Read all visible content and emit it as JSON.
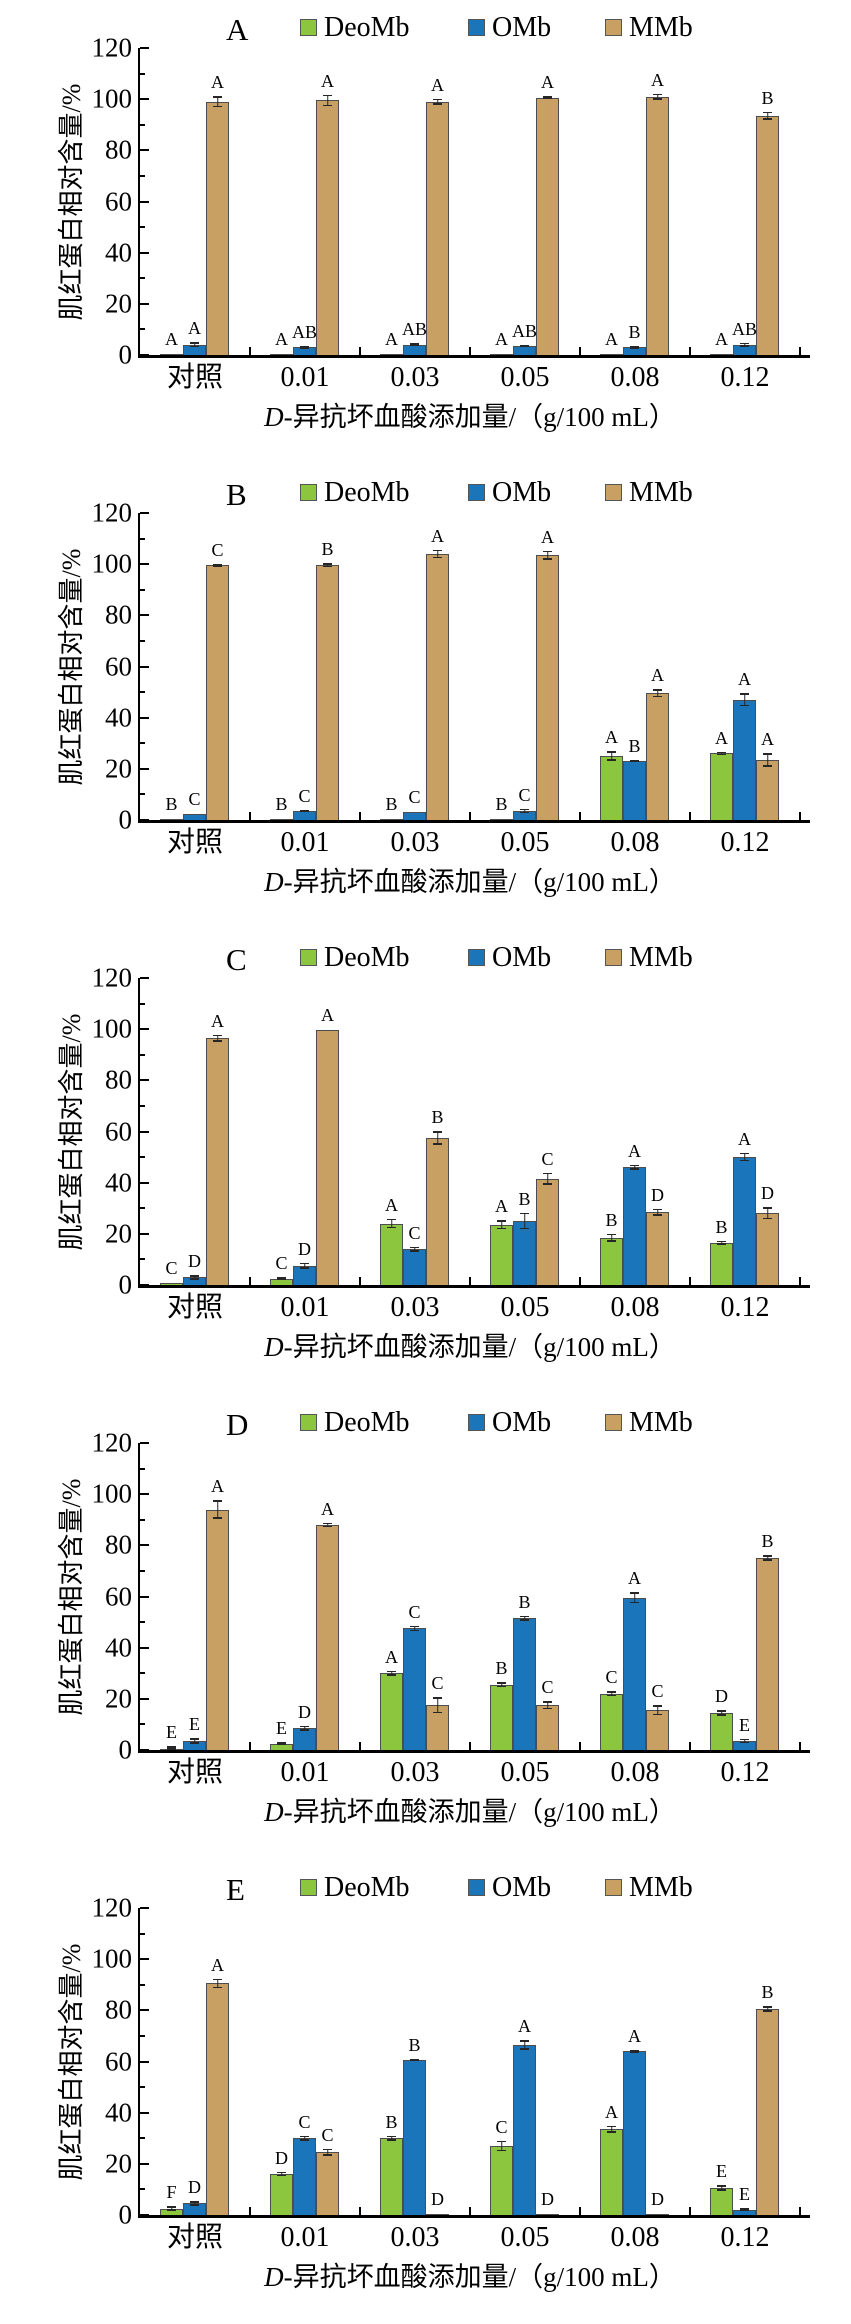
{
  "figure_title": "",
  "colors": {
    "DeoMb": "#8CC63F",
    "OMb": "#1B75BB",
    "MMb": "#C8A064",
    "bar_border": "#4D4D4D",
    "error_bar": "#262626",
    "axis": "#000000"
  },
  "chart_data": [
    {
      "type": "bar",
      "panel_label": "A",
      "ylabel": "肌红蛋白相对含量/%",
      "xlabel": "D-异抗坏血酸添加量/（g/100 mL）",
      "xlabel_italic_prefix": "D",
      "xlabel_rest": "-异抗坏血酸添加量/（g/100 mL）",
      "categories": [
        "对照",
        "0.01",
        "0.03",
        "0.05",
        "0.08",
        "0.12"
      ],
      "ylim": [
        0,
        120
      ],
      "yticks": [
        0,
        20,
        40,
        60,
        80,
        100,
        120
      ],
      "yticks_minor": [
        10,
        30,
        50,
        70,
        90,
        110
      ],
      "legend": [
        "DeoMb",
        "OMb",
        "MMb"
      ],
      "legend_position": "top",
      "grid": false,
      "series": [
        {
          "name": "DeoMb",
          "values": [
            0.4,
            0.4,
            0.4,
            0.4,
            0.4,
            0.4
          ],
          "errors": [
            0.2,
            0.2,
            0.2,
            0.2,
            0.2,
            0.2
          ],
          "letters": [
            "A",
            "A",
            "A",
            "A",
            "A",
            "A"
          ]
        },
        {
          "name": "OMb",
          "values": [
            4,
            3,
            4,
            3.5,
            3,
            4
          ],
          "errors": [
            1,
            0.5,
            0.6,
            0.5,
            0.5,
            0.8
          ],
          "letters": [
            "A",
            "AB",
            "AB",
            "AB",
            "B",
            "AB"
          ]
        },
        {
          "name": "MMb",
          "values": [
            99,
            99.5,
            99,
            100.5,
            101,
            93.5
          ],
          "errors": [
            2.2,
            2.2,
            1.2,
            0.6,
            1.2,
            1.6
          ],
          "letters": [
            "A",
            "A",
            "A",
            "A",
            "A",
            "B"
          ]
        }
      ]
    },
    {
      "type": "bar",
      "panel_label": "B",
      "ylabel": "肌红蛋白相对含量/%",
      "xlabel": "D-异抗坏血酸添加量/（g/100 mL）",
      "xlabel_italic_prefix": "D",
      "xlabel_rest": "-异抗坏血酸添加量/（g/100 mL）",
      "categories": [
        "对照",
        "0.01",
        "0.03",
        "0.05",
        "0.08",
        "0.12"
      ],
      "ylim": [
        0,
        120
      ],
      "yticks": [
        0,
        20,
        40,
        60,
        80,
        100,
        120
      ],
      "yticks_minor": [
        10,
        30,
        50,
        70,
        90,
        110
      ],
      "legend": [
        "DeoMb",
        "OMb",
        "MMb"
      ],
      "legend_position": "top",
      "grid": false,
      "series": [
        {
          "name": "DeoMb",
          "values": [
            0.4,
            0.4,
            0.4,
            0.4,
            25,
            26
          ],
          "errors": [
            0.2,
            0.2,
            0.2,
            0.2,
            1.8,
            0.6
          ],
          "letters": [
            "B",
            "B",
            "B",
            "B",
            "A",
            "A"
          ]
        },
        {
          "name": "OMb",
          "values": [
            2.5,
            3.5,
            3,
            3.5,
            23,
            47
          ],
          "errors": [
            0.4,
            0.5,
            0.4,
            0.8,
            0.5,
            2.6
          ],
          "letters": [
            "C",
            "C",
            "C",
            "C",
            "B",
            "A"
          ]
        },
        {
          "name": "MMb",
          "values": [
            99.5,
            99.5,
            104,
            103.5,
            49.5,
            23.5
          ],
          "errors": [
            0.5,
            0.8,
            1.6,
            1.8,
            1.6,
            2.6
          ],
          "letters": [
            "C",
            "B",
            "A",
            "A",
            "A",
            "A"
          ]
        }
      ]
    },
    {
      "type": "bar",
      "panel_label": "C",
      "ylabel": "肌红蛋白相对含量/%",
      "xlabel": "D-异抗坏血酸添加量/（g/100 mL）",
      "xlabel_italic_prefix": "D",
      "xlabel_rest": "-异抗坏血酸添加量/（g/100 mL）",
      "categories": [
        "对照",
        "0.01",
        "0.03",
        "0.05",
        "0.08",
        "0.12"
      ],
      "ylim": [
        0,
        120
      ],
      "yticks": [
        0,
        20,
        40,
        60,
        80,
        100,
        120
      ],
      "yticks_minor": [
        10,
        30,
        50,
        70,
        90,
        110
      ],
      "legend": [
        "DeoMb",
        "OMb",
        "MMb"
      ],
      "legend_position": "top",
      "grid": false,
      "series": [
        {
          "name": "DeoMb",
          "values": [
            0.6,
            2.5,
            24,
            23.5,
            18.5,
            16.5
          ],
          "errors": [
            0.4,
            0.6,
            1.8,
            1.8,
            1.6,
            0.8
          ],
          "letters": [
            "C",
            "C",
            "A",
            "A",
            "B",
            "B"
          ]
        },
        {
          "name": "OMb",
          "values": [
            3,
            7.5,
            14,
            25,
            46,
            50
          ],
          "errors": [
            0.9,
            1.2,
            1,
            3.2,
            1,
            1.6
          ],
          "letters": [
            "D",
            "D",
            "C",
            "B",
            "A",
            "A"
          ]
        },
        {
          "name": "MMb",
          "values": [
            96.5,
            99.5,
            57.5,
            41.5,
            28.5,
            28
          ],
          "errors": [
            1.4,
            0.4,
            2.6,
            2.4,
            1.4,
            2.4
          ],
          "letters": [
            "A",
            "A",
            "B",
            "C",
            "D",
            "D"
          ]
        }
      ]
    },
    {
      "type": "bar",
      "panel_label": "D",
      "ylabel": "肌红蛋白相对含量/%",
      "xlabel": "D-异抗坏血酸添加量/（g/100 mL）",
      "xlabel_italic_prefix": "D",
      "xlabel_rest": "-异抗坏血酸添加量/（g/100 mL）",
      "categories": [
        "对照",
        "0.01",
        "0.03",
        "0.05",
        "0.08",
        "0.12"
      ],
      "ylim": [
        0,
        120
      ],
      "yticks": [
        0,
        20,
        40,
        60,
        80,
        100,
        120
      ],
      "yticks_minor": [
        10,
        30,
        50,
        70,
        90,
        110
      ],
      "legend": [
        "DeoMb",
        "OMb",
        "MMb"
      ],
      "legend_position": "top",
      "grid": false,
      "series": [
        {
          "name": "DeoMb",
          "values": [
            0.5,
            2.5,
            30,
            25.5,
            22,
            14.5
          ],
          "errors": [
            1,
            0.6,
            1,
            0.9,
            0.9,
            1.1
          ],
          "letters": [
            "E",
            "E",
            "A",
            "B",
            "C",
            "D"
          ]
        },
        {
          "name": "OMb",
          "values": [
            3.5,
            8.5,
            47.5,
            51.5,
            59.5,
            3.5
          ],
          "errors": [
            1,
            0.9,
            1,
            0.9,
            2.2,
            0.9
          ],
          "letters": [
            "E",
            "D",
            "C",
            "B",
            "A",
            "E"
          ]
        },
        {
          "name": "MMb",
          "values": [
            94,
            88,
            17.5,
            17.5,
            15.5,
            75
          ],
          "errors": [
            3.6,
            0.9,
            3.2,
            1.6,
            1.9,
            1.1
          ],
          "letters": [
            "A",
            "A",
            "C",
            "C",
            "C",
            "B"
          ]
        }
      ]
    },
    {
      "type": "bar",
      "panel_label": "E",
      "ylabel": "肌红蛋白相对含量/%",
      "xlabel": "D-异抗坏血酸添加量/（g/100 mL）",
      "xlabel_italic_prefix": "D",
      "xlabel_rest": "-异抗坏血酸添加量/（g/100 mL）",
      "categories": [
        "对照",
        "0.01",
        "0.03",
        "0.05",
        "0.08",
        "0.12"
      ],
      "ylim": [
        0,
        120
      ],
      "yticks": [
        0,
        20,
        40,
        60,
        80,
        100,
        120
      ],
      "yticks_minor": [
        10,
        30,
        50,
        70,
        90,
        110
      ],
      "legend": [
        "DeoMb",
        "OMb",
        "MMb"
      ],
      "legend_position": "top",
      "grid": false,
      "series": [
        {
          "name": "DeoMb",
          "values": [
            2.5,
            16,
            30,
            27,
            33.5,
            10.5
          ],
          "errors": [
            0.9,
            0.9,
            0.9,
            2.1,
            1.3,
            1.1
          ],
          "letters": [
            "F",
            "D",
            "B",
            "C",
            "A",
            "E"
          ]
        },
        {
          "name": "OMb",
          "values": [
            4.5,
            30,
            60.5,
            66.5,
            64,
            2
          ],
          "errors": [
            0.9,
            0.9,
            0.5,
            1.9,
            0.6,
            0.6
          ],
          "letters": [
            "D",
            "C",
            "B",
            "A",
            "A",
            "E"
          ]
        },
        {
          "name": "MMb",
          "values": [
            90.5,
            24.5,
            0.5,
            0.5,
            0.5,
            80.5
          ],
          "errors": [
            1.9,
            1.3,
            0.2,
            0.2,
            0.2,
            1.1
          ],
          "letters": [
            "A",
            "C",
            "D",
            "D",
            "D",
            "B"
          ]
        }
      ]
    }
  ]
}
